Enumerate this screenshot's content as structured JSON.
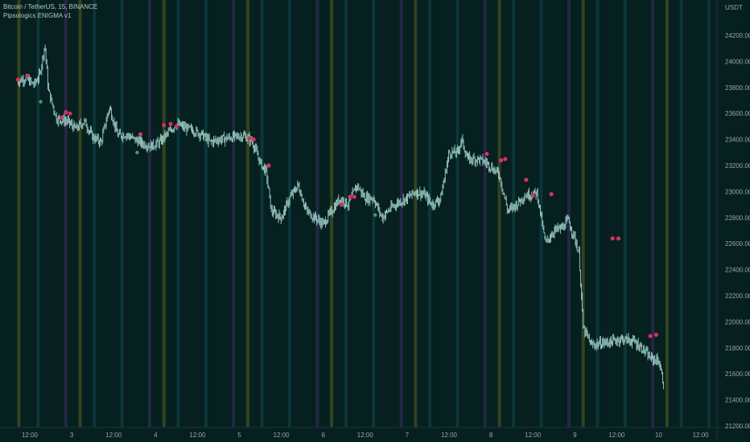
{
  "legend": {
    "symbol_line": "Bitcoin / TetherUS, 15, BINANCE",
    "indicator_line": "Pipsologics ENIGMA v1"
  },
  "colors": {
    "background": "#061f1f",
    "candle": "#9ecfc8",
    "signal_dot": "#d2335c",
    "green_dot": "#4a9a6a",
    "band_olive": "#3b4a22",
    "band_teal": "#0d3b3f",
    "band_purple": "#2a2a4a"
  },
  "chart_data": {
    "type": "line",
    "yaxis_unit": "USDT",
    "ylim": [
      21200,
      24400
    ],
    "y_ticks": [
      24200,
      24000,
      23800,
      23600,
      23400,
      23200,
      23000,
      22800,
      22600,
      22400,
      22200,
      22000,
      21800,
      21600,
      21400,
      21200
    ],
    "x_ticks": [
      "12:00",
      "3",
      "12:00",
      "4",
      "12:00",
      "5",
      "12:00",
      "6",
      "12:00",
      "7",
      "12:00",
      "8",
      "12:00",
      "9",
      "12:00",
      "10",
      "12:00"
    ],
    "x_range_days": [
      2.35,
      10.88
    ],
    "price_path": [
      [
        2.35,
        23850
      ],
      [
        2.45,
        23870
      ],
      [
        2.55,
        23820
      ],
      [
        2.62,
        23900
      ],
      [
        2.68,
        24130
      ],
      [
        2.72,
        23780
      ],
      [
        2.82,
        23560
      ],
      [
        2.95,
        23540
      ],
      [
        3.05,
        23480
      ],
      [
        3.15,
        23540
      ],
      [
        3.25,
        23420
      ],
      [
        3.35,
        23380
      ],
      [
        3.45,
        23650
      ],
      [
        3.55,
        23430
      ],
      [
        3.65,
        23440
      ],
      [
        3.75,
        23400
      ],
      [
        3.85,
        23370
      ],
      [
        3.95,
        23350
      ],
      [
        4.05,
        23380
      ],
      [
        4.15,
        23450
      ],
      [
        4.25,
        23520
      ],
      [
        4.35,
        23490
      ],
      [
        4.45,
        23470
      ],
      [
        4.55,
        23440
      ],
      [
        4.65,
        23380
      ],
      [
        4.75,
        23400
      ],
      [
        4.85,
        23410
      ],
      [
        4.95,
        23420
      ],
      [
        5.05,
        23430
      ],
      [
        5.15,
        23390
      ],
      [
        5.25,
        23220
      ],
      [
        5.32,
        23150
      ],
      [
        5.38,
        22850
      ],
      [
        5.5,
        22800
      ],
      [
        5.6,
        22950
      ],
      [
        5.7,
        23050
      ],
      [
        5.8,
        22850
      ],
      [
        5.9,
        22800
      ],
      [
        6.0,
        22750
      ],
      [
        6.1,
        22850
      ],
      [
        6.2,
        22950
      ],
      [
        6.3,
        22900
      ],
      [
        6.4,
        23050
      ],
      [
        6.5,
        22950
      ],
      [
        6.6,
        22950
      ],
      [
        6.7,
        22800
      ],
      [
        6.8,
        22870
      ],
      [
        6.9,
        22920
      ],
      [
        7.0,
        22950
      ],
      [
        7.1,
        23000
      ],
      [
        7.2,
        22980
      ],
      [
        7.3,
        22900
      ],
      [
        7.4,
        22950
      ],
      [
        7.5,
        23300
      ],
      [
        7.6,
        23300
      ],
      [
        7.65,
        23400
      ],
      [
        7.72,
        23250
      ],
      [
        7.85,
        23250
      ],
      [
        7.95,
        23220
      ],
      [
        8.1,
        23130
      ],
      [
        8.2,
        22850
      ],
      [
        8.3,
        22900
      ],
      [
        8.4,
        22970
      ],
      [
        8.55,
        22990
      ],
      [
        8.65,
        22600
      ],
      [
        8.75,
        22700
      ],
      [
        8.85,
        22720
      ],
      [
        8.92,
        22780
      ],
      [
        9.0,
        22640
      ],
      [
        9.05,
        22520
      ],
      [
        9.1,
        21950
      ],
      [
        9.2,
        21820
      ],
      [
        9.35,
        21840
      ],
      [
        9.45,
        21850
      ],
      [
        9.55,
        21870
      ],
      [
        9.7,
        21850
      ],
      [
        9.8,
        21800
      ],
      [
        9.9,
        21720
      ],
      [
        10.0,
        21700
      ],
      [
        10.06,
        21520
      ]
    ],
    "signal_points": [
      [
        2.36,
        23860
      ],
      [
        2.47,
        23890
      ],
      [
        2.88,
        23570
      ],
      [
        2.93,
        23610
      ],
      [
        2.98,
        23600
      ],
      [
        3.82,
        23440
      ],
      [
        4.1,
        23510
      ],
      [
        4.18,
        23520
      ],
      [
        4.25,
        23500
      ],
      [
        5.12,
        23410
      ],
      [
        5.17,
        23400
      ],
      [
        5.35,
        23200
      ],
      [
        6.22,
        22900
      ],
      [
        6.32,
        22960
      ],
      [
        6.37,
        22960
      ],
      [
        7.95,
        23290
      ],
      [
        8.12,
        23240
      ],
      [
        8.17,
        23250
      ],
      [
        8.42,
        23090
      ],
      [
        8.5,
        22970
      ],
      [
        8.72,
        22980
      ],
      [
        9.45,
        22640
      ],
      [
        9.52,
        22640
      ],
      [
        9.9,
        21890
      ],
      [
        9.97,
        21900
      ]
    ],
    "green_points": [
      [
        2.63,
        23690
      ],
      [
        3.78,
        23300
      ],
      [
        6.62,
        22820
      ]
    ],
    "band_days": [
      {
        "x": 2.37,
        "color": "olive"
      },
      {
        "x": 2.6,
        "color": "teal"
      },
      {
        "x": 2.93,
        "color": "purple"
      },
      {
        "x": 3.1,
        "color": "olive"
      },
      {
        "x": 3.27,
        "color": "teal"
      },
      {
        "x": 3.6,
        "color": "teal"
      },
      {
        "x": 3.93,
        "color": "purple"
      },
      {
        "x": 4.1,
        "color": "olive"
      },
      {
        "x": 4.27,
        "color": "teal"
      },
      {
        "x": 4.6,
        "color": "teal"
      },
      {
        "x": 4.93,
        "color": "purple"
      },
      {
        "x": 5.1,
        "color": "olive"
      },
      {
        "x": 5.27,
        "color": "teal"
      },
      {
        "x": 5.6,
        "color": "teal"
      },
      {
        "x": 5.93,
        "color": "purple"
      },
      {
        "x": 6.1,
        "color": "olive"
      },
      {
        "x": 6.27,
        "color": "teal"
      },
      {
        "x": 6.6,
        "color": "teal"
      },
      {
        "x": 6.93,
        "color": "purple"
      },
      {
        "x": 7.1,
        "color": "olive"
      },
      {
        "x": 7.27,
        "color": "teal"
      },
      {
        "x": 7.6,
        "color": "teal"
      },
      {
        "x": 7.93,
        "color": "purple"
      },
      {
        "x": 8.1,
        "color": "olive"
      },
      {
        "x": 8.27,
        "color": "teal"
      },
      {
        "x": 8.6,
        "color": "teal"
      },
      {
        "x": 8.93,
        "color": "purple"
      },
      {
        "x": 9.1,
        "color": "olive"
      },
      {
        "x": 9.27,
        "color": "teal"
      },
      {
        "x": 9.6,
        "color": "teal"
      },
      {
        "x": 9.93,
        "color": "purple"
      },
      {
        "x": 10.1,
        "color": "olive"
      },
      {
        "x": 10.27,
        "color": "teal"
      },
      {
        "x": 10.6,
        "color": "teal"
      }
    ]
  }
}
